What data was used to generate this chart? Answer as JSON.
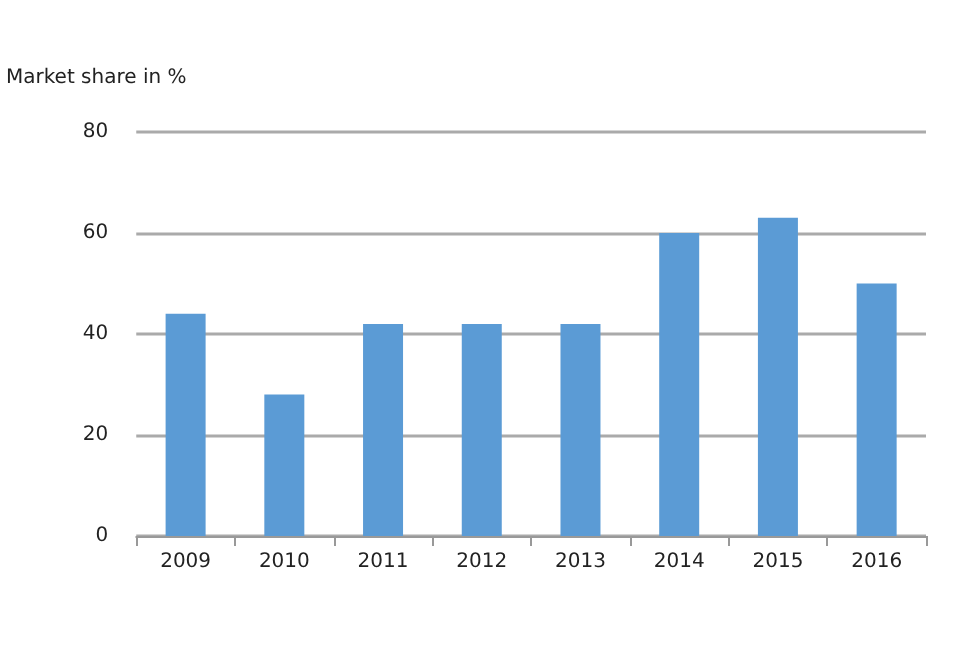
{
  "chart_data": {
    "type": "bar",
    "ylabel": "Market share in %",
    "categories": [
      "2009",
      "2010",
      "2011",
      "2012",
      "2013",
      "2014",
      "2015",
      "2016"
    ],
    "values": [
      44,
      28,
      42,
      42,
      42,
      60,
      63,
      50
    ],
    "color": "#5b9bd5",
    "ylim": [
      0,
      80
    ],
    "yticks": [
      0,
      20,
      40,
      60,
      80
    ],
    "grid": "y"
  }
}
